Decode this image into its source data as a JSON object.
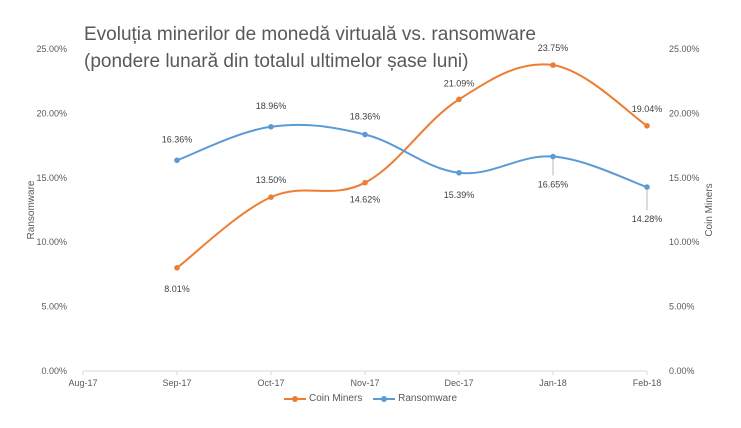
{
  "chart_data": {
    "type": "line",
    "title": "Evoluția minerilor de monedă virtuală vs. ransomware",
    "subtitle": "(pondere lunară din totalul ultimelor șase luni)",
    "categories": [
      "Aug-17",
      "Sep-17",
      "Oct-17",
      "Nov-17",
      "Dec-17",
      "Jan-18",
      "Feb-18"
    ],
    "y_left_label": "Ransomware",
    "y_right_label": "Coin Miners",
    "y_ticks": [
      "0.00%",
      "5.00%",
      "10.00%",
      "15.00%",
      "20.00%",
      "25.00%"
    ],
    "ylim": [
      0,
      25
    ],
    "grid": false,
    "legend_position": "bottom",
    "series": [
      {
        "name": "Coin Miners",
        "color": "#ED7D31",
        "x": [
          "Sep-17",
          "Oct-17",
          "Nov-17",
          "Dec-17",
          "Jan-18",
          "Feb-18"
        ],
        "values": [
          8.01,
          13.5,
          14.62,
          21.09,
          23.75,
          19.04
        ],
        "labels": [
          "8.01%",
          "13.50%",
          "14.62%",
          "21.09%",
          "23.75%",
          "19.04%"
        ]
      },
      {
        "name": "Ransomware",
        "color": "#5B9BD5",
        "x": [
          "Sep-17",
          "Oct-17",
          "Nov-17",
          "Dec-17",
          "Jan-18",
          "Feb-18"
        ],
        "values": [
          16.36,
          18.96,
          18.36,
          15.39,
          16.65,
          14.28
        ],
        "labels": [
          "16.36%",
          "18.96%",
          "18.36%",
          "15.39%",
          "16.65%",
          "14.28%"
        ]
      }
    ]
  }
}
